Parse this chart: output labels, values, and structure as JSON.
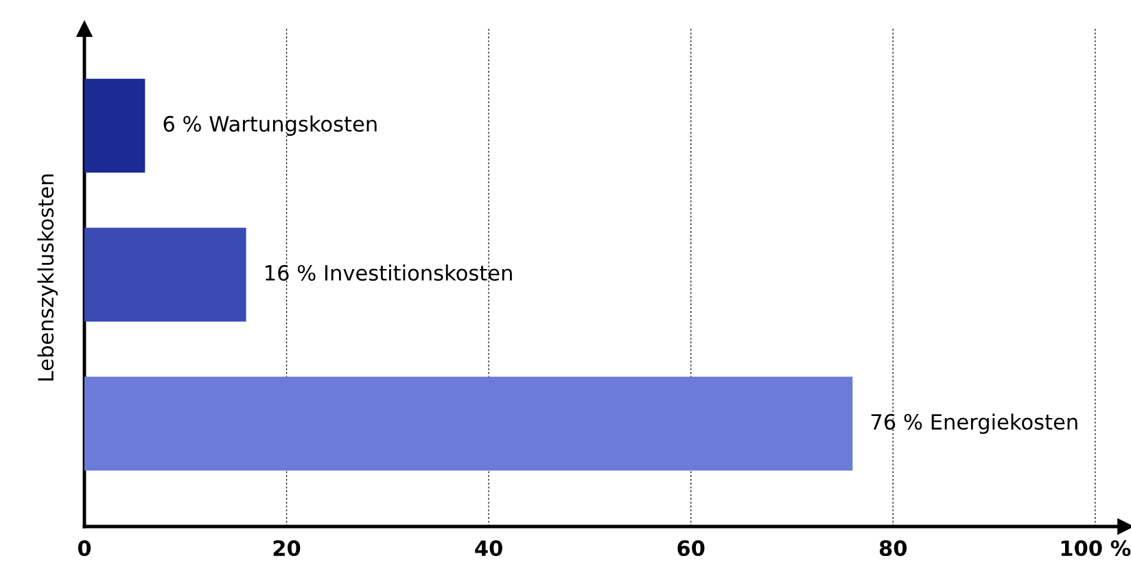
{
  "chart_data": {
    "type": "bar",
    "orientation": "horizontal",
    "ylabel": "Lebenszykluskosten",
    "categories": [
      null,
      null,
      null
    ],
    "values": [
      6,
      16,
      76
    ],
    "colors": [
      "#1c2a96",
      "#3a4cb4",
      "#6c7bd8"
    ],
    "value_labels": [
      "6 % Wartungskosten",
      "16 % Investitionskosten",
      "76 % Energiekosten"
    ],
    "xlim": [
      0,
      103
    ],
    "xticks": [
      0,
      20,
      40,
      60,
      80,
      {
        "value": 100,
        "label": "100 %"
      }
    ],
    "grid": "x"
  }
}
